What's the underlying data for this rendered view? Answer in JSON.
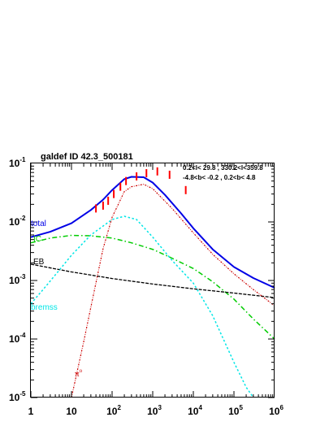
{
  "title": "galdef ID 42.3_500181",
  "region_lines": [
    "0.2<l< 29.8 , 330.2<l<359.8",
    "-4.8<b< -0.2 ,   0.2<b<  4.8"
  ],
  "colors": {
    "total": "#0000e6",
    "ic": "#00cc00",
    "eb": "#000000",
    "bremss": "#00e6e6",
    "pion": "#cc0000",
    "data": "#ff0000"
  },
  "chart_data": {
    "type": "line",
    "xscale": "log",
    "yscale": "log",
    "xlim": [
      1,
      1000000
    ],
    "ylim": [
      1e-05,
      0.1
    ],
    "x_tick_labels": [
      {
        "base": "1",
        "exp": ""
      },
      {
        "base": "10",
        "exp": ""
      },
      {
        "base": "10",
        "exp": "2"
      },
      {
        "base": "10",
        "exp": "3"
      },
      {
        "base": "10",
        "exp": "4"
      },
      {
        "base": "10",
        "exp": "5"
      },
      {
        "base": "10",
        "exp": "6"
      }
    ],
    "y_tick_labels": [
      {
        "base": "10",
        "exp": "-5"
      },
      {
        "base": "10",
        "exp": "-4"
      },
      {
        "base": "10",
        "exp": "-3"
      },
      {
        "base": "10",
        "exp": "-2"
      },
      {
        "base": "10",
        "exp": "-1"
      }
    ],
    "series": [
      {
        "name": "total",
        "style": "solid",
        "x": [
          1,
          3,
          10,
          30,
          60,
          100,
          200,
          300,
          600,
          1000,
          2000,
          5000,
          10000,
          30000,
          100000,
          300000,
          1000000
        ],
        "y": [
          0.0055,
          0.0068,
          0.0095,
          0.016,
          0.024,
          0.035,
          0.054,
          0.059,
          0.058,
          0.047,
          0.029,
          0.014,
          0.0078,
          0.0034,
          0.0017,
          0.0011,
          0.00075
        ]
      },
      {
        "name": "IC",
        "style": "dashdot",
        "x": [
          1,
          3,
          10,
          30,
          100,
          300,
          1000,
          3000,
          10000,
          30000,
          100000,
          300000,
          1000000
        ],
        "y": [
          0.0044,
          0.0053,
          0.0059,
          0.0058,
          0.0053,
          0.0044,
          0.0034,
          0.0024,
          0.0016,
          0.00095,
          0.00048,
          0.00022,
          0.0001
        ]
      },
      {
        "name": "EB",
        "style": "dashed",
        "x": [
          1,
          10,
          100,
          1000,
          10000,
          100000,
          1000000
        ],
        "y": [
          0.0019,
          0.0014,
          0.00108,
          0.00087,
          0.00072,
          0.00061,
          0.00051
        ]
      },
      {
        "name": "bremss",
        "style": "dotted",
        "x": [
          1,
          2,
          5,
          10,
          30,
          100,
          200,
          400,
          1000,
          3000,
          10000,
          30000,
          100000,
          200000,
          300000
        ],
        "y": [
          0.0004,
          0.0007,
          0.0015,
          0.0027,
          0.006,
          0.011,
          0.0125,
          0.011,
          0.0055,
          0.0022,
          0.0009,
          0.00025,
          4e-05,
          1.5e-05,
          1e-05
        ]
      },
      {
        "name": "π⁰",
        "style": "dashdot-dense",
        "x": [
          10,
          20,
          30,
          60,
          100,
          200,
          300,
          600,
          1000,
          3000,
          10000,
          30000,
          100000,
          300000,
          1000000
        ],
        "y": [
          1e-05,
          9e-05,
          0.00035,
          0.0035,
          0.012,
          0.033,
          0.04,
          0.044,
          0.037,
          0.017,
          0.0065,
          0.0028,
          0.0013,
          0.0007,
          0.00037
        ]
      }
    ],
    "data_points": {
      "x": [
        40,
        60,
        80,
        110,
        160,
        220,
        400,
        700,
        1300,
        2600,
        6500
      ],
      "y": [
        0.017,
        0.019,
        0.023,
        0.03,
        0.04,
        0.05,
        0.06,
        0.068,
        0.073,
        0.064,
        0.035
      ]
    },
    "labels": {
      "total": "total",
      "ic": "IC",
      "eb": "EB",
      "bremss": "bremss",
      "pion_base": "π",
      "pion_sup": "o"
    }
  }
}
